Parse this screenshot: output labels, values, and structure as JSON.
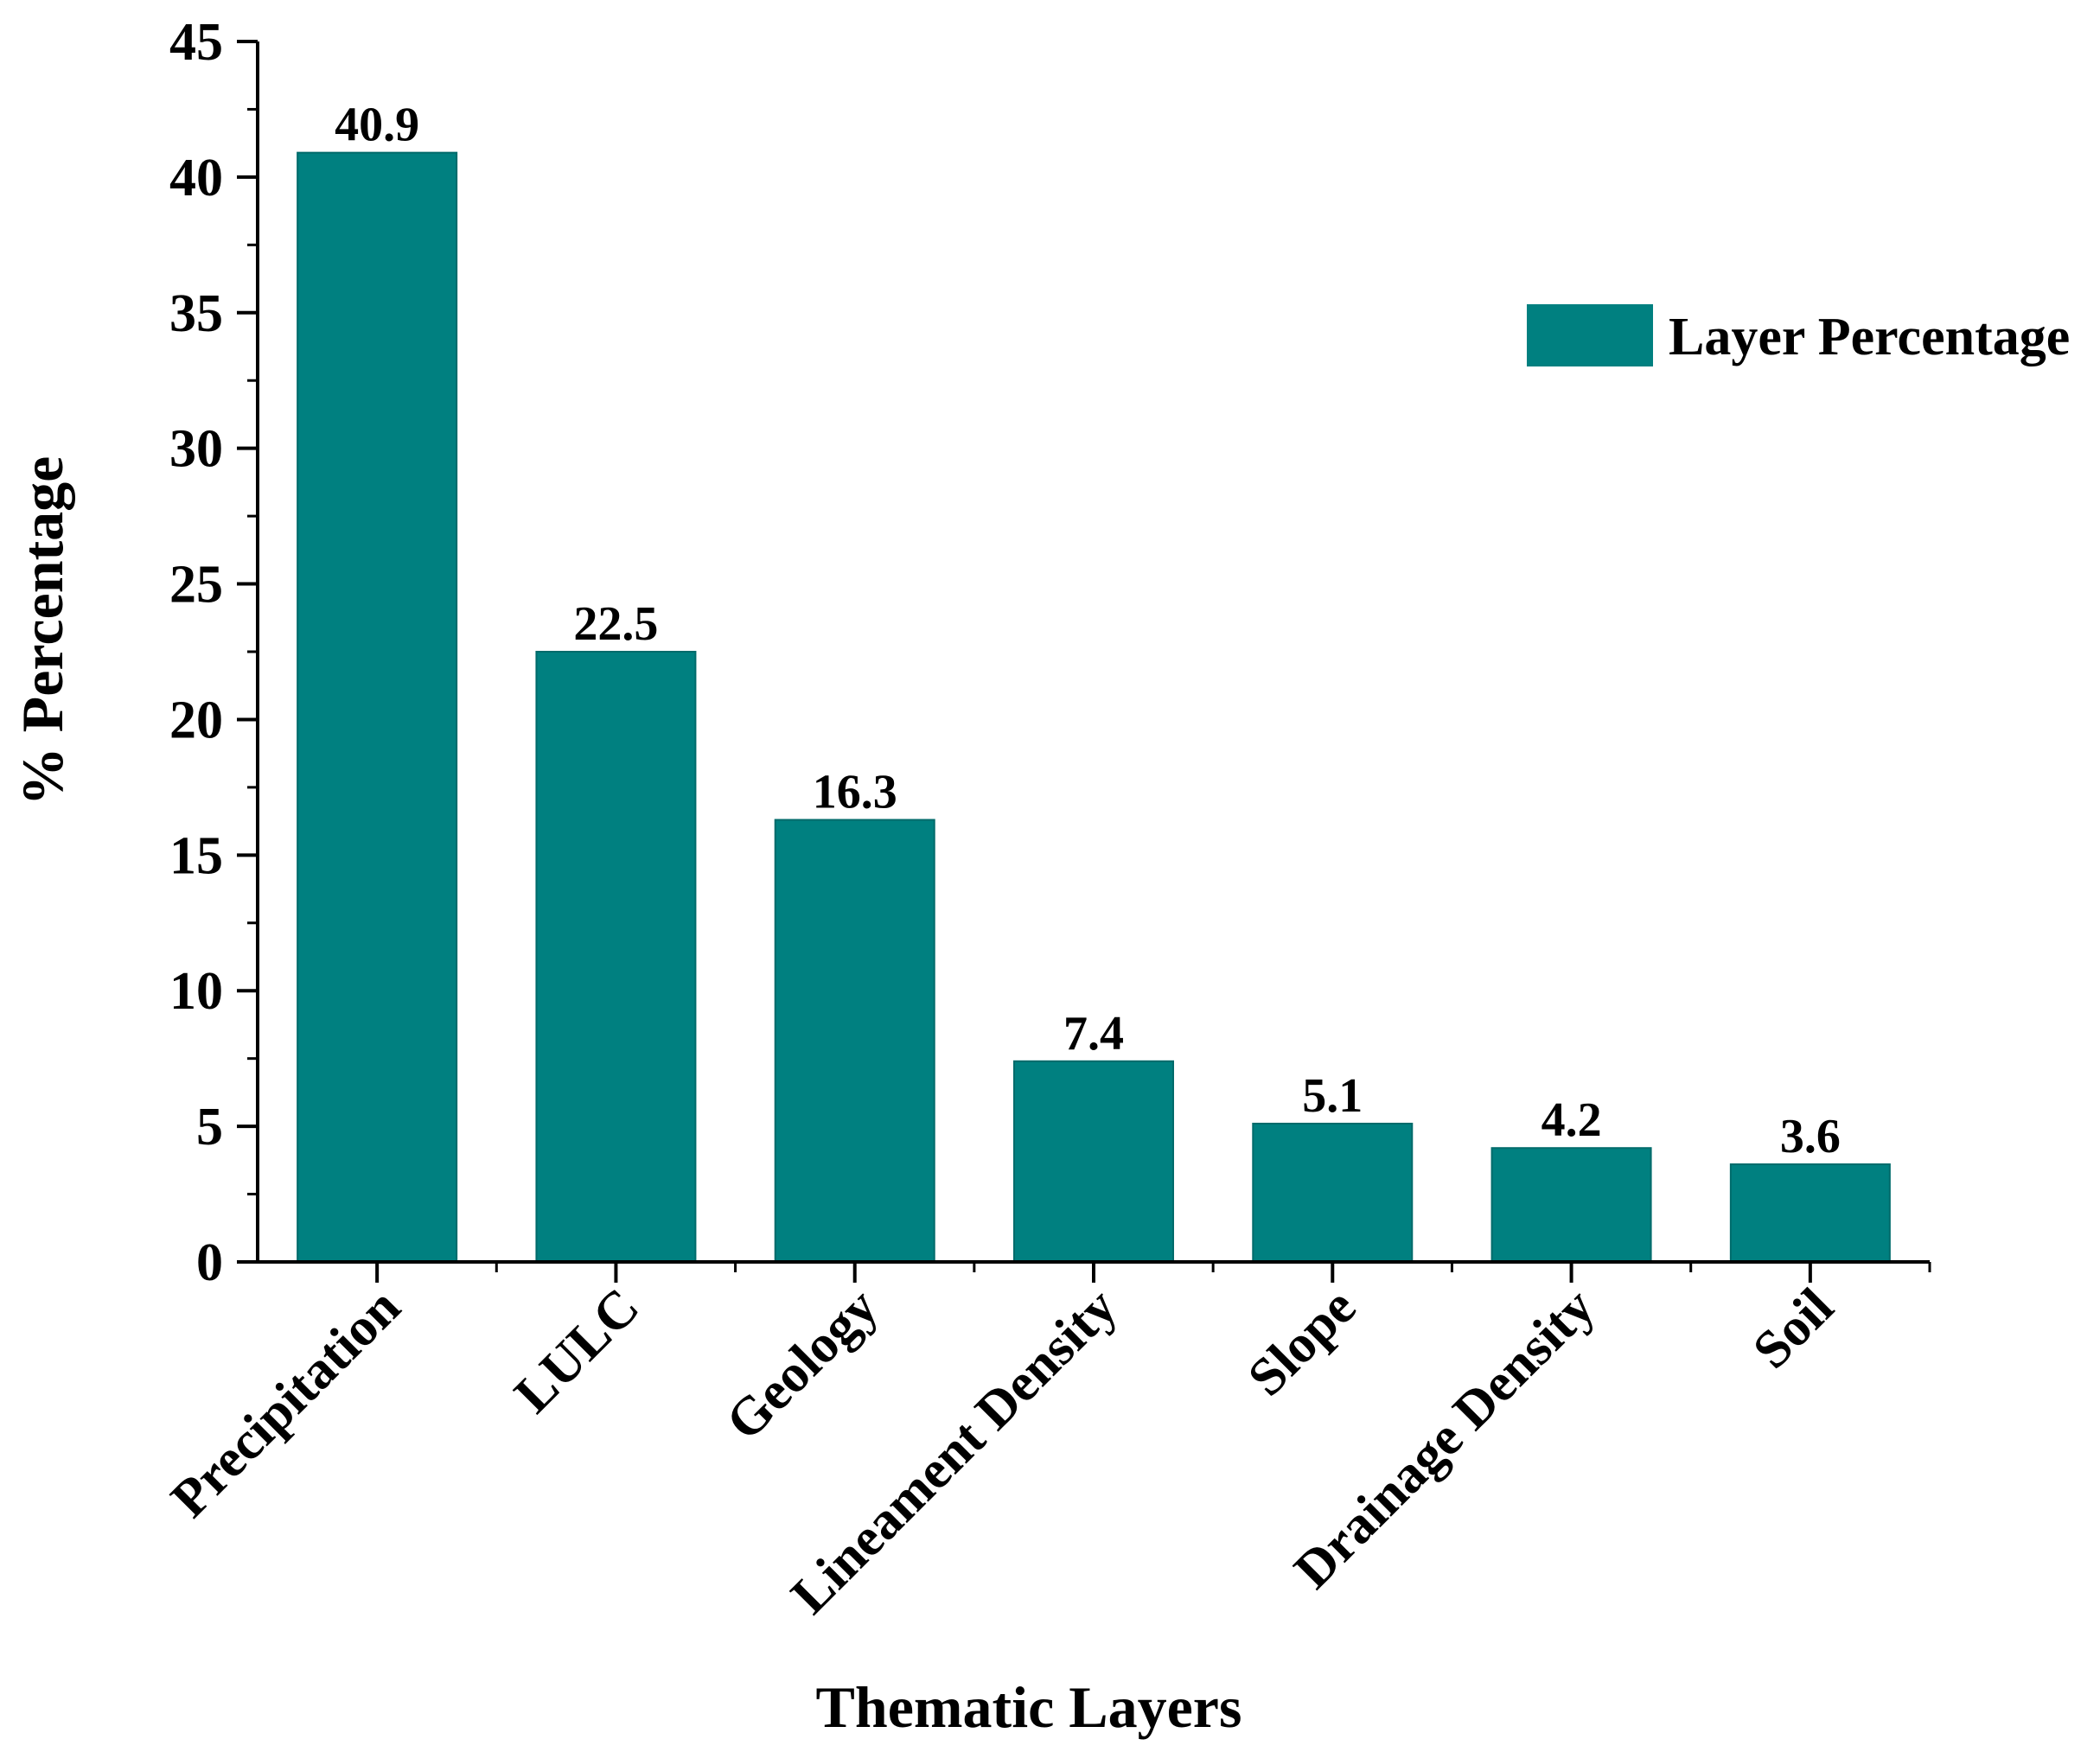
{
  "chart_data": {
    "type": "bar",
    "title": "",
    "xlabel": "Thematic Layers",
    "ylabel": "% Percentage",
    "categories": [
      "Precipitation",
      "LULC",
      "Geology",
      "Lineament Density",
      "Slope",
      "Drainage Density",
      "Soil"
    ],
    "series": [
      {
        "name": "Layer Percentage",
        "values": [
          40.9,
          22.5,
          16.3,
          7.4,
          5.1,
          4.2,
          3.6
        ],
        "color": "#008080"
      }
    ],
    "data_labels": [
      "40.9",
      "22.5",
      "16.3",
      "7.4",
      "5.1",
      "4.2",
      "3.6"
    ],
    "ylim": [
      0,
      45
    ],
    "yticks": [
      0,
      5,
      10,
      15,
      20,
      25,
      30,
      35,
      40,
      45
    ],
    "ytick_labels": [
      "0",
      "5",
      "10",
      "15",
      "20",
      "25",
      "30",
      "35",
      "40",
      "45"
    ],
    "grid": false,
    "legend": {
      "position": "top-right",
      "label": "Layer Percentage"
    }
  }
}
